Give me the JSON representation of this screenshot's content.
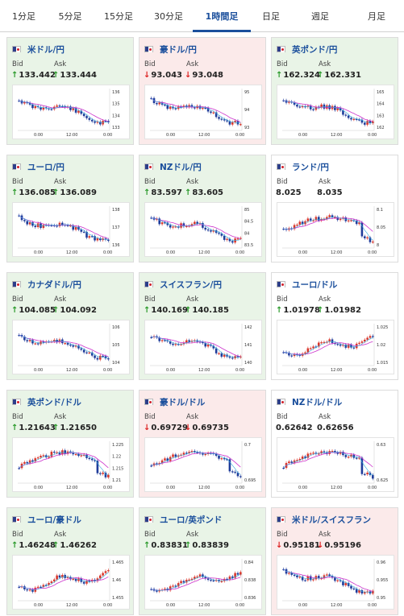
{
  "tabs": [
    {
      "label": "1分足"
    },
    {
      "label": "5分足"
    },
    {
      "label": "15分足"
    },
    {
      "label": "30分足"
    },
    {
      "label": "1時間足",
      "active": true
    },
    {
      "label": "日足"
    },
    {
      "label": "週足"
    },
    {
      "label": "月足"
    }
  ],
  "cards": [
    {
      "pair": "米ドル/円",
      "flag": "us-flag-icon",
      "trend": "up",
      "bid_dir": "up",
      "ask_dir": "up",
      "bid": "133.442",
      "ask": "133.444",
      "bid_label": "Bid",
      "ask_label": "Ask",
      "chart": {
        "yticks": [
          "136",
          "135",
          "134",
          "133"
        ],
        "xticks": [
          "0:00",
          "12:00",
          "0:00"
        ],
        "shape": "fall"
      }
    },
    {
      "pair": "豪ドル/円",
      "flag": "au-flag-icon",
      "trend": "down",
      "bid_dir": "down",
      "ask_dir": "down",
      "bid": "93.043",
      "ask": "93.048",
      "bid_label": "Bid",
      "ask_label": "Ask",
      "chart": {
        "yticks": [
          "95",
          "94",
          "93"
        ],
        "xticks": [
          "0:00",
          "12:00",
          "0:00"
        ],
        "shape": "fall"
      }
    },
    {
      "pair": "英ポンド/円",
      "flag": "gb-flag-icon",
      "trend": "up",
      "bid_dir": "up",
      "ask_dir": "up",
      "bid": "162.324",
      "ask": "162.331",
      "bid_label": "Bid",
      "ask_label": "Ask",
      "chart": {
        "yticks": [
          "165",
          "164",
          "163",
          "162"
        ],
        "xticks": [
          "0:00",
          "12:00",
          "0:00"
        ],
        "shape": "fall"
      }
    },
    {
      "pair": "ユーロ/円",
      "flag": "eu-flag-icon",
      "trend": "up",
      "bid_dir": "up",
      "ask_dir": "up",
      "bid": "136.085",
      "ask": "136.089",
      "bid_label": "Bid",
      "ask_label": "Ask",
      "chart": {
        "yticks": [
          "138",
          "137",
          "136"
        ],
        "xticks": [
          "0:00",
          "12:00",
          "0:00"
        ],
        "shape": "fall"
      }
    },
    {
      "pair": "NZドル/円",
      "flag": "nz-flag-icon",
      "trend": "up",
      "bid_dir": "up",
      "ask_dir": "up",
      "bid": "83.597",
      "ask": "83.605",
      "bid_label": "Bid",
      "ask_label": "Ask",
      "chart": {
        "yticks": [
          "85",
          "84.5",
          "84",
          "83.5"
        ],
        "xticks": [
          "0:00",
          "12:00",
          "0:00"
        ],
        "shape": "fall"
      }
    },
    {
      "pair": "ランド/円",
      "flag": "za-flag-icon",
      "trend": "flat",
      "bid_dir": "none",
      "ask_dir": "none",
      "bid": "8.025",
      "ask": "8.035",
      "bid_label": "Bid",
      "ask_label": "Ask",
      "chart": {
        "yticks": [
          "8.1",
          "8.05",
          "8"
        ],
        "xticks": [
          "0:00",
          "12:00",
          "0:00"
        ],
        "shape": "humpfall"
      }
    },
    {
      "pair": "カナダドル/円",
      "flag": "ca-flag-icon",
      "trend": "up",
      "bid_dir": "up",
      "ask_dir": "up",
      "bid": "104.085",
      "ask": "104.092",
      "bid_label": "Bid",
      "ask_label": "Ask",
      "chart": {
        "yticks": [
          "106",
          "105",
          "104"
        ],
        "xticks": [
          "0:00",
          "12:00",
          "0:00"
        ],
        "shape": "fall"
      }
    },
    {
      "pair": "スイスフラン/円",
      "flag": "ch-flag-icon",
      "trend": "up",
      "bid_dir": "up",
      "ask_dir": "up",
      "bid": "140.169",
      "ask": "140.185",
      "bid_label": "Bid",
      "ask_label": "Ask",
      "chart": {
        "yticks": [
          "142",
          "141",
          "140"
        ],
        "xticks": [
          "0:00",
          "12:00",
          "0:00"
        ],
        "shape": "fall"
      }
    },
    {
      "pair": "ユーロ/ドル",
      "flag": "eu-flag-icon",
      "trend": "flat",
      "bid_dir": "up",
      "ask_dir": "up",
      "bid": "1.01978",
      "ask": "1.01982",
      "bid_label": "Bid",
      "ask_label": "Ask",
      "chart": {
        "yticks": [
          "1.025",
          "1.02",
          "1.015"
        ],
        "xticks": [
          "0:00",
          "12:00",
          "0:00"
        ],
        "shape": "rise"
      }
    },
    {
      "pair": "英ポンド/ドル",
      "flag": "gb-flag-icon",
      "trend": "up",
      "bid_dir": "up",
      "ask_dir": "up",
      "bid": "1.21643",
      "ask": "1.21650",
      "bid_label": "Bid",
      "ask_label": "Ask",
      "chart": {
        "yticks": [
          "1.225",
          "1.22",
          "1.215",
          "1.21"
        ],
        "xticks": [
          "0:00",
          "12:00",
          "0:00"
        ],
        "shape": "humpfall"
      }
    },
    {
      "pair": "豪ドル/ドル",
      "flag": "au-flag-icon",
      "trend": "down",
      "bid_dir": "down",
      "ask_dir": "down",
      "bid": "0.69729",
      "ask": "0.69735",
      "bid_label": "Bid",
      "ask_label": "Ask",
      "chart": {
        "yticks": [
          "0.7",
          "0.695"
        ],
        "xticks": [
          "0:00",
          "12:00",
          "0:00"
        ],
        "shape": "humpfall"
      }
    },
    {
      "pair": "NZドル/ドル",
      "flag": "nz-flag-icon",
      "trend": "flat",
      "bid_dir": "none",
      "ask_dir": "none",
      "bid": "0.62642",
      "ask": "0.62656",
      "bid_label": "Bid",
      "ask_label": "Ask",
      "chart": {
        "yticks": [
          "0.63",
          "0.625"
        ],
        "xticks": [
          "0:00",
          "12:00",
          "0:00"
        ],
        "shape": "humpfall"
      }
    },
    {
      "pair": "ユーロ/豪ドル",
      "flag": "eu-flag-icon",
      "trend": "up",
      "bid_dir": "up",
      "ask_dir": "up",
      "bid": "1.46248",
      "ask": "1.46262",
      "bid_label": "Bid",
      "ask_label": "Ask",
      "chart": {
        "yticks": [
          "1.465",
          "1.46",
          "1.455"
        ],
        "xticks": [
          "0:00",
          "12:00",
          "0:00"
        ],
        "shape": "rise"
      }
    },
    {
      "pair": "ユーロ/英ポンド",
      "flag": "eu-flag-icon",
      "trend": "up",
      "bid_dir": "up",
      "ask_dir": "up",
      "bid": "0.83831",
      "ask": "0.83839",
      "bid_label": "Bid",
      "ask_label": "Ask",
      "chart": {
        "yticks": [
          "0.84",
          "0.838",
          "0.836"
        ],
        "xticks": [
          "0:00",
          "12:00",
          "0:00"
        ],
        "shape": "rise"
      }
    },
    {
      "pair": "米ドル/スイスフラン",
      "flag": "us-flag-icon",
      "trend": "down",
      "bid_dir": "down",
      "ask_dir": "down",
      "bid": "0.95181",
      "ask": "0.95196",
      "bid_label": "Bid",
      "ask_label": "Ask",
      "chart": {
        "yticks": [
          "0.96",
          "0.955",
          "0.95"
        ],
        "xticks": [
          "0:00",
          "12:00",
          "0:00"
        ],
        "shape": "fall"
      }
    }
  ],
  "colors": {
    "candle_up": "#d9362b",
    "candle_down": "#1f3c9a",
    "ma1": "#cc33cc",
    "ma2": "#33aadd",
    "card_up": "#e9f4e7",
    "card_down": "#fbeaea"
  }
}
